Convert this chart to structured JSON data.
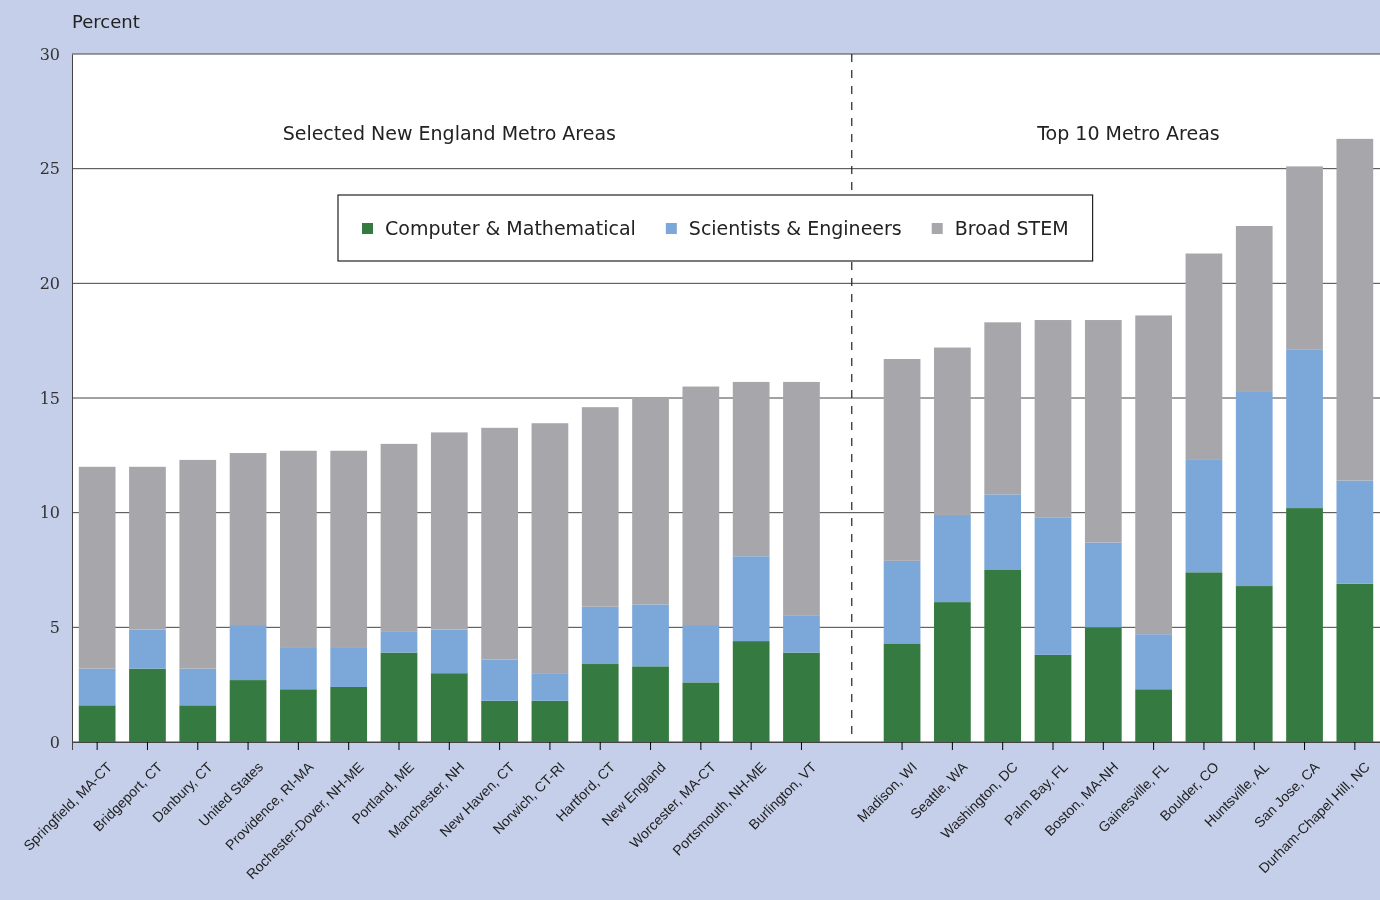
{
  "chart_data": {
    "type": "bar",
    "stacked": true,
    "ylabel": "Percent",
    "categories": [
      "Springfield, MA-CT",
      "Bridgeport, CT",
      "Danbury, CT",
      "United States",
      "Providence, RI-MA",
      "Rochester-Dover, NH-ME",
      "Portland, ME",
      "Manchester, NH",
      "New Haven, CT",
      "Norwich, CT-RI",
      "Hartford, CT",
      "New England",
      "Worcester, MA-CT",
      "Portsmouth, NH-ME",
      "Burlington, VT",
      null,
      "Madison, WI",
      "Seattle, WA",
      "Washington, DC",
      "Palm Bay, FL",
      "Boston, MA-NH",
      "Gainesville, FL",
      "Boulder, CO",
      "Huntsville, AL",
      "San Jose, CA",
      "Durham-Chapel Hill, NC"
    ],
    "series": [
      {
        "name": "Computer & Mathematical",
        "color": "#357a40",
        "values": [
          1.6,
          3.2,
          1.6,
          2.7,
          2.3,
          2.4,
          3.9,
          3.0,
          1.8,
          1.8,
          3.4,
          3.3,
          2.6,
          4.4,
          3.9,
          null,
          4.3,
          6.1,
          7.5,
          3.8,
          5.0,
          2.3,
          7.4,
          6.8,
          10.2,
          6.9
        ]
      },
      {
        "name": "Scientists & Engineers",
        "color": "#7ba7d9",
        "values": [
          1.6,
          1.7,
          1.6,
          2.4,
          1.8,
          1.7,
          0.9,
          1.9,
          1.8,
          1.2,
          2.5,
          2.7,
          2.5,
          3.7,
          1.6,
          null,
          3.6,
          3.8,
          3.3,
          6.0,
          3.7,
          2.4,
          4.9,
          8.5,
          6.9,
          4.5
        ]
      },
      {
        "name": "Broad STEM",
        "color": "#a7a7ab",
        "values": [
          8.8,
          7.1,
          9.1,
          7.5,
          8.6,
          8.6,
          8.2,
          8.6,
          10.1,
          10.9,
          8.7,
          9.0,
          10.4,
          7.6,
          10.2,
          null,
          8.8,
          7.3,
          7.5,
          8.6,
          9.7,
          13.9,
          9.0,
          7.2,
          8.0,
          14.9
        ]
      }
    ],
    "ylim": [
      0,
      30
    ],
    "yticks": [
      0,
      5,
      10,
      15,
      20,
      25,
      30
    ],
    "grid": "y",
    "legend": "top",
    "annotations": [
      "Selected New England Metro Areas",
      "Top 10 Metro Areas"
    ]
  }
}
